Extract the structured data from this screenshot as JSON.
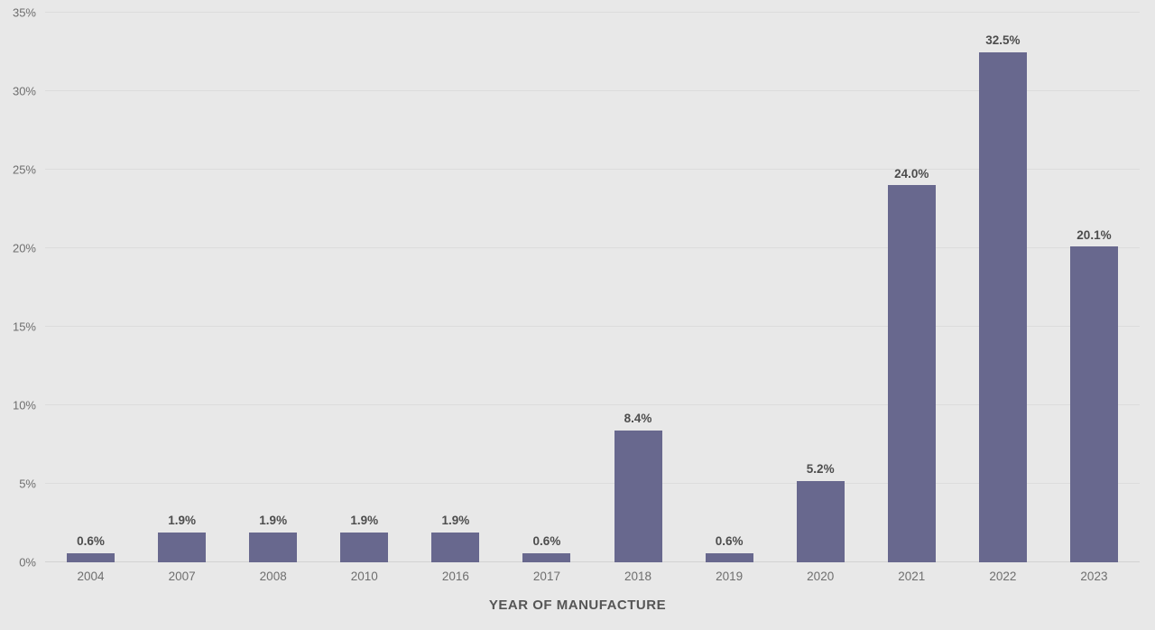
{
  "chart_data": {
    "type": "bar",
    "title": "",
    "xlabel": "YEAR OF MANUFACTURE",
    "ylabel": "",
    "categories": [
      "2004",
      "2007",
      "2008",
      "2010",
      "2016",
      "2017",
      "2018",
      "2019",
      "2020",
      "2021",
      "2022",
      "2023"
    ],
    "values": [
      0.6,
      1.9,
      1.9,
      1.9,
      1.9,
      0.6,
      8.4,
      0.6,
      5.2,
      24.0,
      32.5,
      20.1
    ],
    "value_labels": [
      "0.6%",
      "1.9%",
      "1.9%",
      "1.9%",
      "1.9%",
      "0.6%",
      "8.4%",
      "0.6%",
      "5.2%",
      "24.0%",
      "32.5%",
      "20.1%"
    ],
    "y_ticks": [
      "0%",
      "5%",
      "10%",
      "15%",
      "20%",
      "25%",
      "30%",
      "35%"
    ],
    "y_tick_values": [
      0,
      5,
      10,
      15,
      20,
      25,
      30,
      35
    ],
    "ylim": [
      0,
      35
    ],
    "grid": "horizontal-only",
    "legend": "none"
  },
  "colors": {
    "background": "#e8e8e8",
    "bar": "#68688e",
    "grid_line": "#dcdcdc",
    "baseline": "#d2d2d2",
    "tick_label": "#6e6e6e",
    "value_label": "#4d4d4d",
    "axis_title": "#555555"
  }
}
